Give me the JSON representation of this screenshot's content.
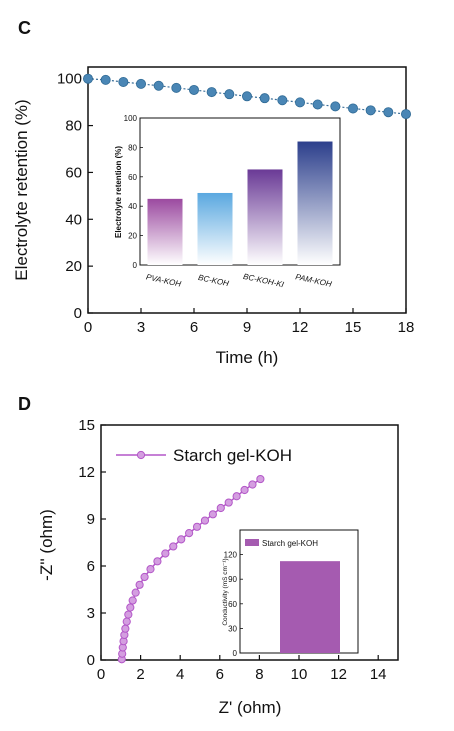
{
  "panels": {
    "c_letter": "C",
    "d_letter": "D"
  },
  "chart_data": [
    {
      "type": "scatter",
      "id": "C-main",
      "xlabel": "Time (h)",
      "ylabel": "Electrolyte retention (%)",
      "xlim": [
        0,
        18
      ],
      "ylim": [
        0,
        105
      ],
      "xticks": [
        0,
        3,
        6,
        9,
        12,
        15,
        18
      ],
      "yticks": [
        0,
        20,
        40,
        60,
        80,
        100
      ],
      "color": "#4a86b5",
      "x": [
        0,
        1,
        2,
        3,
        4,
        5,
        6,
        7,
        8,
        9,
        10,
        11,
        12,
        13,
        14,
        15,
        16,
        17,
        18
      ],
      "y": [
        100,
        99.5,
        98.6,
        97.8,
        97.0,
        96.1,
        95.2,
        94.3,
        93.4,
        92.5,
        91.7,
        90.8,
        89.9,
        89.0,
        88.2,
        87.3,
        86.5,
        85.7,
        84.9
      ]
    },
    {
      "type": "bar",
      "id": "C-inset",
      "ylabel": "Electrolyte retention (%)",
      "ylim": [
        0,
        100
      ],
      "yticks": [
        0,
        20,
        40,
        60,
        80,
        100
      ],
      "categories": [
        "PVA-KOH",
        "BC-KOH",
        "BC-KOH-KI",
        "PAM-KOH"
      ],
      "values": [
        45,
        49,
        65,
        84
      ],
      "colors": [
        "#9b4aa0",
        "#5aa8e0",
        "#6a3a96",
        "#2c3f8c"
      ]
    },
    {
      "type": "line",
      "id": "D-main",
      "xlabel": "Z' (ohm)",
      "ylabel": "-Z'' (ohm)",
      "xlim": [
        0,
        15
      ],
      "ylim": [
        0,
        15
      ],
      "xticks": [
        0,
        2,
        4,
        6,
        8,
        10,
        12,
        14
      ],
      "yticks": [
        0,
        3,
        6,
        9,
        12,
        15
      ],
      "legend": "top-left",
      "series_name": "Starch gel-KOH",
      "color": "#b357c8",
      "x": [
        1.05,
        1.07,
        1.1,
        1.14,
        1.18,
        1.23,
        1.3,
        1.38,
        1.48,
        1.6,
        1.75,
        1.95,
        2.2,
        2.5,
        2.85,
        3.25,
        3.65,
        4.05,
        4.45,
        4.85,
        5.25,
        5.65,
        6.05,
        6.45,
        6.85,
        7.25,
        7.65,
        8.05
      ],
      "y": [
        0.05,
        0.4,
        0.8,
        1.2,
        1.6,
        2.0,
        2.45,
        2.9,
        3.35,
        3.8,
        4.3,
        4.8,
        5.3,
        5.8,
        6.3,
        6.8,
        7.25,
        7.7,
        8.1,
        8.5,
        8.9,
        9.3,
        9.7,
        10.05,
        10.45,
        10.85,
        11.2,
        11.55
      ]
    },
    {
      "type": "bar",
      "id": "D-inset",
      "ylabel": "Conductivity (mS cm⁻¹)",
      "ylim": [
        0,
        150
      ],
      "yticks": [
        0,
        30,
        60,
        90,
        120
      ],
      "legend": "top-left",
      "series_name": "Starch gel-KOH",
      "values": [
        112
      ],
      "color": "#a55bb0"
    }
  ]
}
